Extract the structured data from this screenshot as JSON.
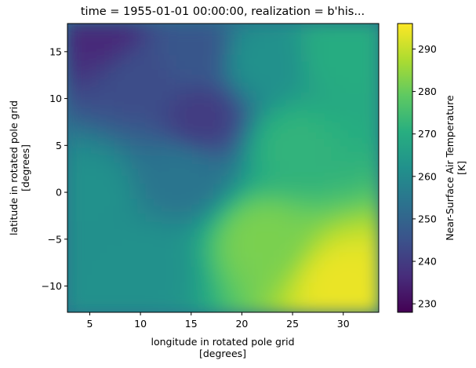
{
  "chart_data": {
    "type": "heatmap",
    "title": "time = 1955-01-01 00:00:00, realization = b'his...",
    "xlabel": "longitude in rotated pole grid",
    "xlabel_units": "[degrees]",
    "ylabel": "latitude in rotated pole grid",
    "ylabel_units": "[degrees]",
    "xlim": [
      2.8,
      33.5
    ],
    "ylim": [
      -12.8,
      18.0
    ],
    "xticks": [
      5,
      10,
      15,
      20,
      25,
      30
    ],
    "yticks": [
      -10,
      -5,
      0,
      5,
      10,
      15
    ],
    "colorbar": {
      "label": "Near-Surface Air Temperature",
      "units": "[K]",
      "range": [
        228,
        296
      ],
      "ticks": [
        230,
        240,
        250,
        260,
        270,
        280,
        290
      ],
      "colormap": "viridis",
      "location": "right"
    },
    "field_description_points": [
      {
        "x": 6,
        "y": 17,
        "value": 236
      },
      {
        "x": 10,
        "y": 12,
        "value": 244
      },
      {
        "x": 16,
        "y": 8,
        "value": 240
      },
      {
        "x": 15,
        "y": 15,
        "value": 246
      },
      {
        "x": 22,
        "y": 14,
        "value": 262
      },
      {
        "x": 30,
        "y": 15,
        "value": 270
      },
      {
        "x": 5,
        "y": 0,
        "value": 262
      },
      {
        "x": 14,
        "y": 2,
        "value": 254
      },
      {
        "x": 25,
        "y": 5,
        "value": 272
      },
      {
        "x": 10,
        "y": -8,
        "value": 262
      },
      {
        "x": 22,
        "y": -5,
        "value": 282
      },
      {
        "x": 30,
        "y": -10,
        "value": 294
      }
    ]
  }
}
